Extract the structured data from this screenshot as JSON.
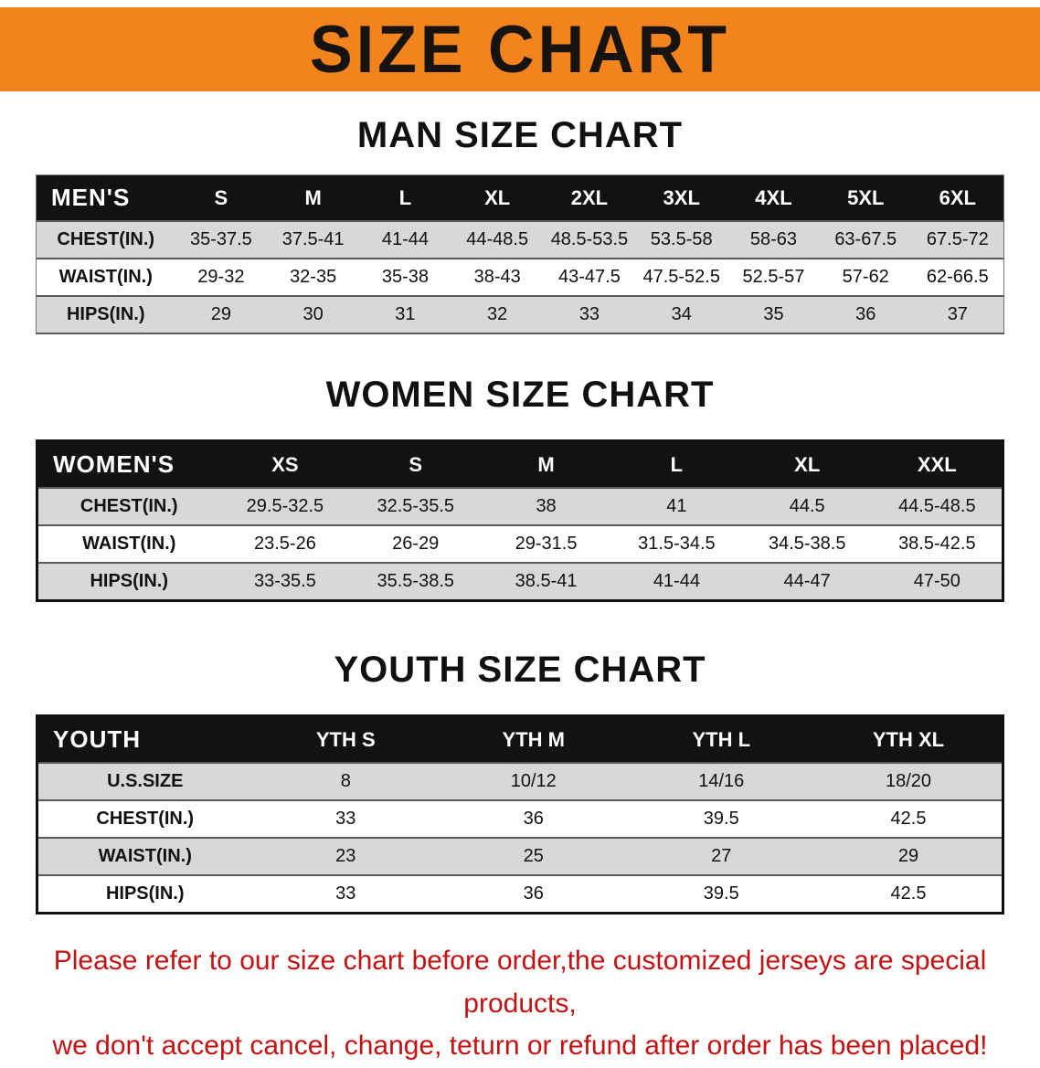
{
  "banner": {
    "title": "SIZE CHART",
    "bg_color": "#f2831d",
    "text_color": "#161310"
  },
  "sections": [
    {
      "heading": "MAN SIZE CHART",
      "table": {
        "header": [
          "MEN'S",
          "S",
          "M",
          "L",
          "XL",
          "2XL",
          "3XL",
          "4XL",
          "5XL",
          "6XL"
        ],
        "rows": [
          {
            "label": "CHEST(IN.)",
            "values": [
              "35-37.5",
              "37.5-41",
              "41-44",
              "44-48.5",
              "48.5-53.5",
              "53.5-58",
              "58-63",
              "63-67.5",
              "67.5-72"
            ]
          },
          {
            "label": "WAIST(IN.)",
            "values": [
              "29-32",
              "32-35",
              "35-38",
              "38-43",
              "43-47.5",
              "47.5-52.5",
              "52.5-57",
              "57-62",
              "62-66.5"
            ]
          },
          {
            "label": "HIPS(IN.)",
            "values": [
              "29",
              "30",
              "31",
              "32",
              "33",
              "34",
              "35",
              "36",
              "37"
            ]
          }
        ]
      }
    },
    {
      "heading": "WOMEN SIZE CHART",
      "table": {
        "header": [
          "WOMEN'S",
          "XS",
          "S",
          "M",
          "L",
          "XL",
          "XXL"
        ],
        "rows": [
          {
            "label": "CHEST(IN.)",
            "values": [
              "29.5-32.5",
              "32.5-35.5",
              "38",
              "41",
              "44.5",
              "44.5-48.5"
            ]
          },
          {
            "label": "WAIST(IN.)",
            "values": [
              "23.5-26",
              "26-29",
              "29-31.5",
              "31.5-34.5",
              "34.5-38.5",
              "38.5-42.5"
            ]
          },
          {
            "label": "HIPS(IN.)",
            "values": [
              "33-35.5",
              "35.5-38.5",
              "38.5-41",
              "41-44",
              "44-47",
              "47-50"
            ]
          }
        ]
      }
    },
    {
      "heading": "YOUTH SIZE CHART",
      "table": {
        "header": [
          "YOUTH",
          "YTH S",
          "YTH M",
          "YTH L",
          "YTH XL"
        ],
        "rows": [
          {
            "label": "U.S.SIZE",
            "values": [
              "8",
              "10/12",
              "14/16",
              "18/20"
            ]
          },
          {
            "label": "CHEST(IN.)",
            "values": [
              "33",
              "36",
              "39.5",
              "42.5"
            ]
          },
          {
            "label": "WAIST(IN.)",
            "values": [
              "23",
              "25",
              "27",
              "29"
            ]
          },
          {
            "label": "HIPS(IN.)",
            "values": [
              "33",
              "36",
              "39.5",
              "42.5"
            ]
          }
        ]
      }
    }
  ],
  "footer": {
    "line1": "Please refer to our size chart before order,the customized jerseys are special products,",
    "line2": "we don't accept cancel, change, teturn or refund after order has been placed!",
    "text_color": "#c41111"
  }
}
